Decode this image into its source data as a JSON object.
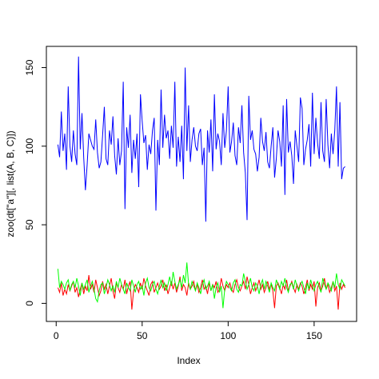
{
  "chart_data": {
    "type": "line",
    "x_label": "Index",
    "y_label": "zoo(dt[\"a\"][, list(A, B, C)])",
    "x": [
      1,
      2,
      3,
      4,
      5,
      6,
      7,
      8,
      9,
      10,
      11,
      12,
      13,
      14,
      15,
      16,
      17,
      18,
      19,
      20,
      21,
      22,
      23,
      24,
      25,
      26,
      27,
      28,
      29,
      30,
      31,
      32,
      33,
      34,
      35,
      36,
      37,
      38,
      39,
      40,
      41,
      42,
      43,
      44,
      45,
      46,
      47,
      48,
      49,
      50,
      51,
      52,
      53,
      54,
      55,
      56,
      57,
      58,
      59,
      60,
      61,
      62,
      63,
      64,
      65,
      66,
      67,
      68,
      69,
      70,
      71,
      72,
      73,
      74,
      75,
      76,
      77,
      78,
      79,
      80,
      81,
      82,
      83,
      84,
      85,
      86,
      87,
      88,
      89,
      90,
      91,
      92,
      93,
      94,
      95,
      96,
      97,
      98,
      99,
      100,
      101,
      102,
      103,
      104,
      105,
      106,
      107,
      108,
      109,
      110,
      111,
      112,
      113,
      114,
      115,
      116,
      117,
      118,
      119,
      120,
      121,
      122,
      123,
      124,
      125,
      126,
      127,
      128,
      129,
      130,
      131,
      132,
      133,
      134,
      135,
      136,
      137,
      138,
      139,
      140,
      141,
      142,
      143,
      144,
      145,
      146,
      147,
      148,
      149,
      150,
      151,
      152,
      153,
      154,
      155,
      156,
      157,
      158,
      159,
      160,
      161,
      162,
      163,
      164,
      165,
      166,
      167,
      168
    ],
    "series": [
      {
        "color": "#0000ff",
        "values": [
          101,
          93,
          122,
          97,
          108,
          85,
          138,
          100,
          90,
          110,
          95,
          88,
          157,
          98,
          121,
          93,
          72,
          88,
          108,
          104,
          100,
          98,
          117,
          96,
          86,
          90,
          107,
          125,
          92,
          88,
          110,
          101,
          119,
          94,
          82,
          105,
          88,
          97,
          141,
          60,
          112,
          99,
          120,
          83,
          104,
          92,
          108,
          74,
          133,
          116,
          102,
          107,
          85,
          101,
          95,
          110,
          118,
          59,
          104,
          88,
          136,
          99,
          120,
          105,
          110,
          92,
          113,
          99,
          141,
          87,
          106,
          90,
          113,
          79,
          150,
          97,
          126,
          90,
          104,
          112,
          100,
          97,
          108,
          111,
          88,
          99,
          52,
          110,
          96,
          117,
          84,
          133,
          98,
          108,
          103,
          88,
          121,
          99,
          110,
          138,
          96,
          103,
          115,
          94,
          88,
          112,
          102,
          126,
          96,
          83,
          53,
          132,
          104,
          110,
          98,
          95,
          84,
          93,
          118,
          103,
          97,
          109,
          90,
          86,
          100,
          112,
          80,
          92,
          110,
          103,
          87,
          126,
          69,
          130,
          96,
          103,
          94,
          76,
          110,
          100,
          90,
          131,
          124,
          88,
          98,
          104,
          114,
          87,
          134,
          95,
          118,
          102,
          92,
          128,
          97,
          90,
          130,
          101,
          86,
          108,
          95,
          110,
          138,
          87,
          128,
          79,
          86,
          87
        ]
      },
      {
        "color": "#ff0000",
        "values": [
          10,
          7,
          13,
          5,
          9,
          6,
          12,
          8,
          11,
          14,
          7,
          10,
          4,
          9,
          13,
          6,
          11,
          8,
          18,
          9,
          12,
          7,
          15,
          10,
          5,
          8,
          14,
          9,
          12,
          6,
          11,
          16,
          8,
          3,
          13,
          10,
          7,
          12,
          9,
          15,
          6,
          11,
          14,
          -4,
          8,
          12,
          10,
          7,
          13,
          9,
          16,
          11,
          8,
          5,
          12,
          14,
          7,
          10,
          13,
          9,
          11,
          15,
          8,
          12,
          6,
          10,
          14,
          9,
          13,
          7,
          11,
          17,
          8,
          12,
          10,
          5,
          13,
          9,
          11,
          14,
          8,
          12,
          7,
          10,
          15,
          9,
          11,
          6,
          13,
          8,
          12,
          10,
          14,
          7,
          9,
          16,
          11,
          8,
          12,
          10,
          13,
          9,
          7,
          12,
          15,
          10,
          8,
          11,
          14,
          9,
          17,
          12,
          6,
          10,
          13,
          8,
          11,
          15,
          9,
          12,
          7,
          10,
          14,
          9,
          12,
          8,
          -3,
          11,
          13,
          10,
          6,
          12,
          9,
          15,
          8,
          11,
          14,
          10,
          7,
          12,
          9,
          13,
          11,
          6,
          10,
          15,
          8,
          12,
          9,
          14,
          -2,
          10,
          13,
          8,
          11,
          16,
          9,
          12,
          7,
          10,
          14,
          8,
          11,
          -4,
          13,
          9,
          12,
          10
        ]
      },
      {
        "color": "#00ff00",
        "values": [
          22,
          10,
          14,
          12,
          9,
          13,
          15,
          8,
          12,
          14,
          10,
          16,
          11,
          5,
          13,
          9,
          12,
          15,
          7,
          11,
          14,
          9,
          3,
          1,
          8,
          12,
          13,
          6,
          10,
          15,
          12,
          8,
          11,
          7,
          14,
          10,
          16,
          12,
          9,
          6,
          13,
          10,
          8,
          15,
          11,
          7,
          12,
          14,
          9,
          11,
          5,
          13,
          16,
          10,
          8,
          12,
          14,
          9,
          6,
          11,
          15,
          10,
          13,
          8,
          12,
          17,
          11,
          20,
          14,
          9,
          12,
          15,
          10,
          18,
          13,
          26,
          12,
          9,
          14,
          11,
          8,
          13,
          10,
          6,
          12,
          15,
          9,
          11,
          14,
          8,
          12,
          3,
          10,
          13,
          7,
          11,
          -3,
          9,
          14,
          12,
          10,
          8,
          13,
          15,
          9,
          7,
          12,
          11,
          19,
          14,
          9,
          12,
          16,
          10,
          8,
          13,
          11,
          6,
          12,
          15,
          9,
          14,
          11,
          7,
          13,
          10,
          8,
          15,
          12,
          9,
          14,
          11,
          16,
          10,
          7,
          12,
          13,
          9,
          15,
          11,
          8,
          12,
          14,
          10,
          6,
          13,
          9,
          15,
          11,
          8,
          12,
          14,
          10,
          7,
          16,
          12,
          9,
          13,
          11,
          8,
          14,
          10,
          19,
          12,
          9,
          15,
          13,
          11
        ]
      }
    ],
    "xlim": [
      -5.7,
      174.7
    ],
    "ylim": [
      -11.5,
      163.5
    ],
    "xticks": [
      0,
      50,
      100,
      150
    ],
    "yticks": [
      0,
      50,
      100,
      150
    ]
  }
}
